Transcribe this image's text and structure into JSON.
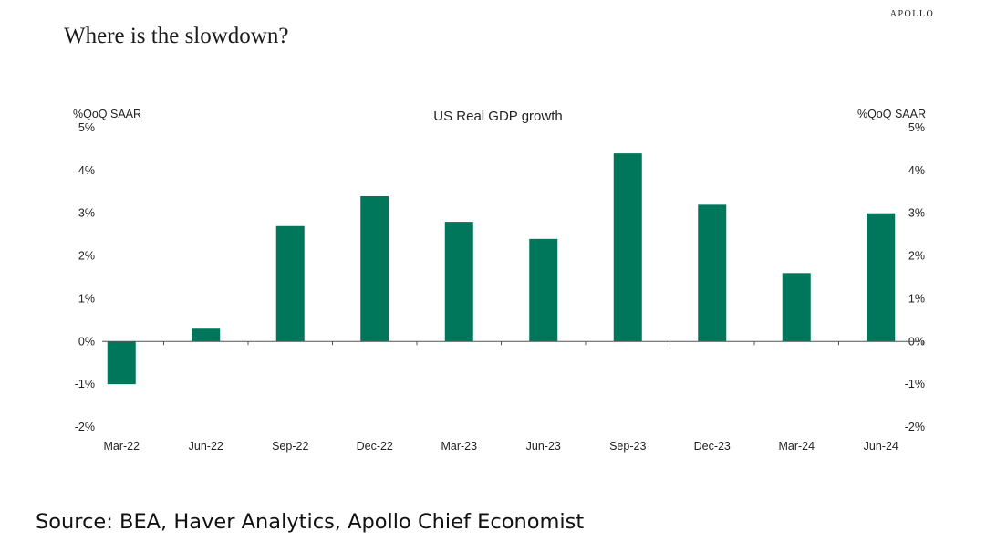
{
  "brand": "APOLLO",
  "headline": "Where is the slowdown?",
  "source": "Source: BEA, Haver Analytics, Apollo Chief Economist",
  "colors": {
    "bar": "#00775a",
    "axis": "#555555",
    "text": "#222222"
  },
  "chart_data": {
    "type": "bar",
    "title": "US Real GDP growth",
    "ylabel_left": "%QoQ SAAR",
    "ylabel_right": "%QoQ SAAR",
    "categories": [
      "Mar-22",
      "Jun-22",
      "Sep-22",
      "Dec-22",
      "Mar-23",
      "Jun-23",
      "Sep-23",
      "Dec-23",
      "Mar-24",
      "Jun-24"
    ],
    "values": [
      -1.0,
      0.3,
      2.7,
      3.4,
      2.8,
      2.4,
      4.4,
      3.2,
      1.6,
      3.0
    ],
    "ylim": [
      -2,
      5
    ],
    "yticks": [
      5,
      4,
      3,
      2,
      1,
      0,
      -1,
      -2
    ],
    "ytick_labels": [
      "5%",
      "4%",
      "3%",
      "2%",
      "1%",
      "0%",
      "-1%",
      "-2%"
    ],
    "grid": false,
    "legend": "none"
  }
}
